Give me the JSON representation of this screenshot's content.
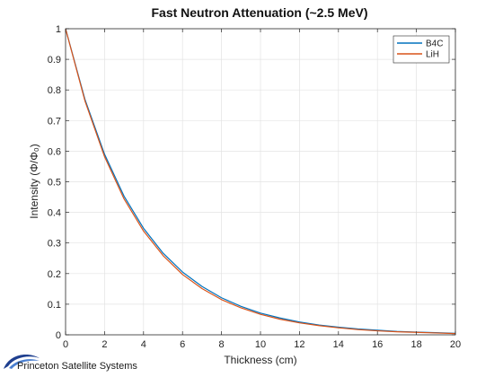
{
  "chart_data": {
    "type": "line",
    "title": "Fast Neutron Attenuation (~2.5 MeV)",
    "xlabel": "Thickness (cm)",
    "ylabel": "Intensity (Φ/Φ₀)",
    "xlim": [
      0,
      20
    ],
    "ylim": [
      0,
      1
    ],
    "x_ticks": [
      0,
      2,
      4,
      6,
      8,
      10,
      12,
      14,
      16,
      18,
      20
    ],
    "y_ticks": [
      0,
      0.1,
      0.2,
      0.3,
      0.4,
      0.5,
      0.6,
      0.7,
      0.8,
      0.9,
      1
    ],
    "grid": true,
    "legend_placement": "top-right",
    "x": [
      0,
      1,
      2,
      3,
      4,
      5,
      6,
      7,
      8,
      9,
      10,
      11,
      12,
      13,
      14,
      15,
      16,
      17,
      18,
      19,
      20
    ],
    "series": [
      {
        "name": "B4C",
        "color": "#0072BD",
        "values": [
          1.0,
          0.768,
          0.59,
          0.453,
          0.348,
          0.267,
          0.205,
          0.158,
          0.121,
          0.093,
          0.071,
          0.055,
          0.042,
          0.032,
          0.025,
          0.019,
          0.015,
          0.011,
          0.009,
          0.007,
          0.005
        ]
      },
      {
        "name": "LiH",
        "color": "#D95319",
        "values": [
          1.0,
          0.763,
          0.582,
          0.444,
          0.339,
          0.259,
          0.197,
          0.151,
          0.115,
          0.088,
          0.067,
          0.051,
          0.039,
          0.03,
          0.023,
          0.017,
          0.013,
          0.01,
          0.008,
          0.006,
          0.004
        ]
      }
    ]
  },
  "logo": {
    "text": "Princeton Satellite Systems",
    "colors": [
      "#1f3f8f",
      "#4a7fd0"
    ]
  }
}
